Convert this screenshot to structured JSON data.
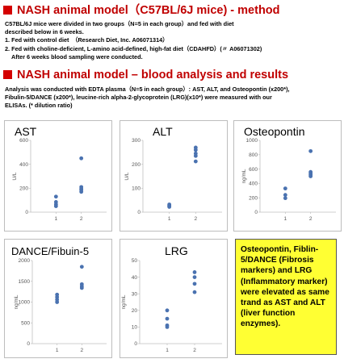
{
  "section1": {
    "title": "NASH animal model（C57BL/6J mice) - method",
    "lines": [
      "C57BL/6J mice were divided in two groups（N=5 in each group）and fed with diet",
      "described below in 6 weeks.",
      "1. Fed with control diet　（Research Diet, Inc.  A06071314）",
      "2. Fed with choline-deficient, L-amino acid-defined, high-fat diet（CDAHFD）(〃 A06071302)",
      "   After 6 weeks blood sampling were conducted."
    ]
  },
  "section2": {
    "title": "NASH animal model – blood analysis and results",
    "lines": [
      "Analysis was conducted with EDTA plasma（N=5 in each group）: AST, ALT, and Osteopontin (x200*),",
      "Fibulin-5/DANCE (x200*), leucine-rich alpha-2-glycoprotein (LRG)(x10*) were measured with our",
      "ELISAs. (* dilution ratio)"
    ]
  },
  "chart_data": [
    {
      "type": "scatter",
      "title": "AST",
      "ylabel": "U/L",
      "categories": [
        "1",
        "2"
      ],
      "ylim": [
        0,
        600
      ],
      "yticks": [
        0,
        200,
        400,
        600
      ],
      "series": [
        {
          "values": [
            [
              130,
              85,
              65,
              50
            ],
            [
              450,
              210,
              195,
              185,
              170
            ]
          ]
        }
      ]
    },
    {
      "type": "scatter",
      "title": "ALT",
      "ylabel": "U/L",
      "categories": [
        "1",
        "2"
      ],
      "ylim": [
        0,
        300
      ],
      "yticks": [
        0,
        100,
        200,
        300
      ],
      "series": [
        {
          "values": [
            [
              32,
              28,
              25,
              22
            ],
            [
              270,
              260,
              245,
              235,
              212
            ]
          ]
        }
      ]
    },
    {
      "type": "scatter",
      "title": "Osteopontin",
      "ylabel": "ng/mL",
      "categories": [
        "1",
        "2"
      ],
      "ylim": [
        0,
        1000
      ],
      "yticks": [
        0,
        200,
        400,
        600,
        800,
        1000
      ],
      "series": [
        {
          "values": [
            [
              330,
              240,
              195
            ],
            [
              850,
              560,
              540,
              520,
              500
            ]
          ]
        }
      ]
    },
    {
      "type": "scatter",
      "title": "DANCE/Fibuin-5",
      "ylabel": "ng/mL",
      "categories": [
        "1",
        "2"
      ],
      "ylim": [
        0,
        2000
      ],
      "yticks": [
        0,
        500,
        1000,
        1500,
        2000
      ],
      "series": [
        {
          "values": [
            [
              1180,
              1120,
              1060,
              1000
            ],
            [
              1850,
              1430,
              1380,
              1340
            ]
          ]
        }
      ]
    },
    {
      "type": "scatter",
      "title": "LRG",
      "ylabel": "ng/mL",
      "categories": [
        "1",
        "2"
      ],
      "ylim": [
        0,
        50
      ],
      "yticks": [
        0,
        10,
        20,
        30,
        40,
        50
      ],
      "series": [
        {
          "values": [
            [
              20,
              15,
              11,
              10
            ],
            [
              43,
              40,
              36,
              31
            ]
          ]
        }
      ]
    }
  ],
  "note": "Osteopontin, Fiblin-5/DANCE (Fibrosis markers) and LRG (Inflammatory marker) were elevated as same trand as AST and ALT (liver function enzymes).",
  "colors": {
    "heading": "#c00000",
    "marker": "#4a72b0",
    "note_bg": "#ffff33"
  }
}
